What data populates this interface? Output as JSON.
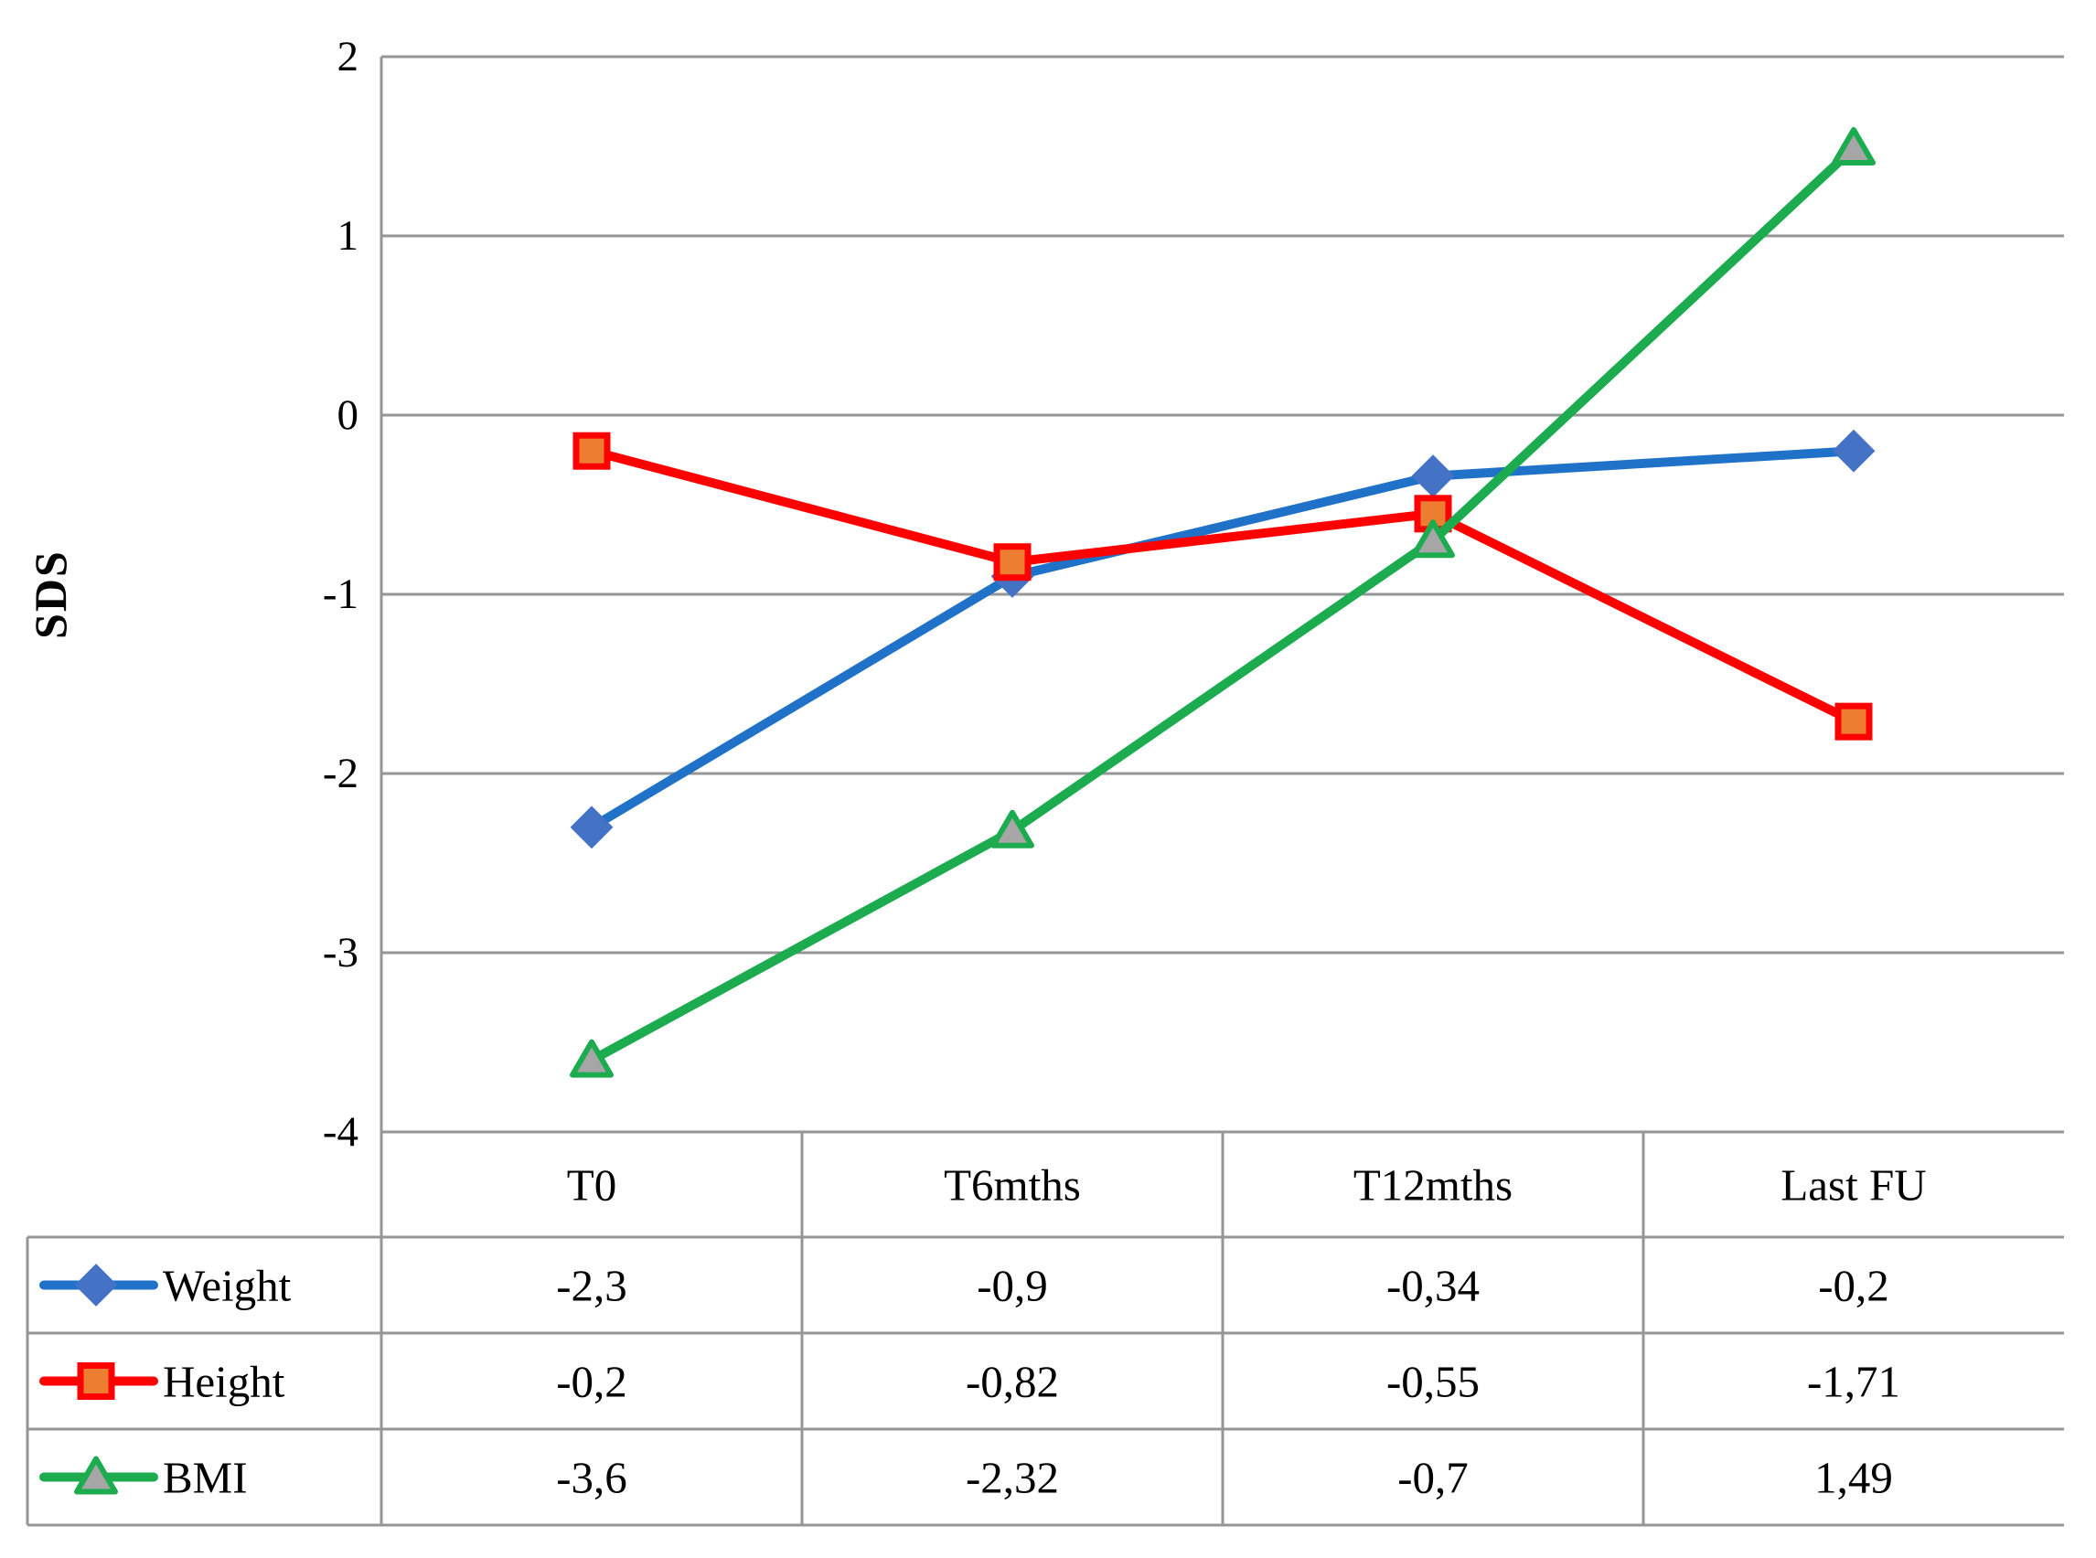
{
  "figure": {
    "background": "#FFFFFF",
    "text_color": "#000000"
  },
  "chart_data": {
    "type": "line",
    "title": "",
    "xlabel": "",
    "ylabel": "SDS",
    "ylim": [
      -4,
      2
    ],
    "y_ticks": [
      2,
      1,
      0,
      -1,
      -2,
      -3,
      -4
    ],
    "y_tick_labels": [
      "2",
      "1",
      "0",
      "-1",
      "-2",
      "-3",
      "-4"
    ],
    "grid": true,
    "gridline_color": "#969696",
    "border_color": "#969696",
    "legend_position": "table-left",
    "categories": [
      "T0",
      "T6mths",
      "T12mths",
      "Last FU"
    ],
    "series": [
      {
        "name": "Weight",
        "values": [
          -2.3,
          -0.9,
          -0.34,
          -0.2
        ],
        "display_values": [
          "-2,3",
          "-0,9",
          "-0,34",
          "-0,2"
        ],
        "line_color": "#1F72C8",
        "marker": "diamond",
        "marker_fill": "#4472C4",
        "marker_stroke": "#4472C4"
      },
      {
        "name": "Height",
        "values": [
          -0.2,
          -0.82,
          -0.55,
          -1.71
        ],
        "display_values": [
          "-0,2",
          "-0,82",
          "-0,55",
          "-1,71"
        ],
        "line_color": "#FF0000",
        "marker": "square",
        "marker_fill": "#ED7D31",
        "marker_stroke": "#FF0000"
      },
      {
        "name": "BMI",
        "values": [
          -3.6,
          -2.32,
          -0.7,
          1.49
        ],
        "display_values": [
          "-3,6",
          "-2,32",
          "-0,7",
          "1,49"
        ],
        "line_color": "#1CAC4F",
        "marker": "triangle",
        "marker_fill": "#A6A6A6",
        "marker_stroke": "#1CAC4F"
      }
    ]
  }
}
